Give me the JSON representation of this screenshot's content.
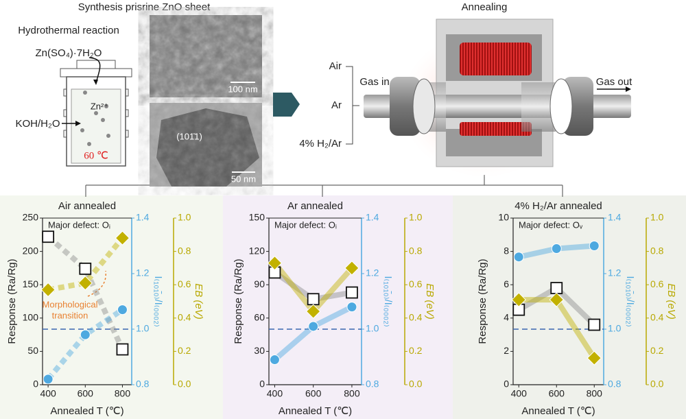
{
  "diagram": {
    "left_title": "Synthesis prisrine ZnO sheet",
    "hydro": "Hydrothermal reaction",
    "reagent": "Zn(SO₄)·7H₂O",
    "ion": "Zn²⁺",
    "solvent": "KOH/H₂O",
    "temp": "60 ℃",
    "sem_scale": "100 nm",
    "tem_plane": "(101̄1)",
    "tem_scale": "50 nm",
    "right_title": "Annealing",
    "gas_air": "Air",
    "gas_ar": "Ar",
    "gas_h2": "4% H₂/Ar",
    "gas_in": "Gas in",
    "gas_out": "Gas out"
  },
  "chart_data": [
    {
      "type": "line",
      "title": "Air annealed",
      "annotation": "Major defect: Oᵢ",
      "annotations": [
        "Morphological",
        "transition"
      ],
      "xlabel": "Annealed T (℃)",
      "ylabel": "Response (Ra/Rg)",
      "y2label": "I₍₁₀₁̄₀₎/I₍₀₀₀₂₎",
      "y3label": "EB (eV)",
      "x": [
        400,
        600,
        800
      ],
      "xlim": [
        370,
        850
      ],
      "xticks": [
        400,
        600,
        800
      ],
      "ylim": [
        0,
        250
      ],
      "yticks": [
        0,
        50,
        100,
        150,
        200,
        250
      ],
      "y2lim": [
        0.8,
        1.4
      ],
      "y2ticks": [
        0.8,
        {
          "value": 1,
          "label": "1.0"
        },
        1.2,
        1.4
      ],
      "y3lim": [
        0,
        1
      ],
      "y3ticks": [
        {
          "value": 0,
          "label": "0.0"
        },
        0.2,
        0.4,
        0.6,
        0.8,
        {
          "value": 1,
          "label": "1.0"
        }
      ],
      "reference_line": {
        "axis": "y2",
        "value": 1,
        "color": "#3a66b0"
      },
      "series": [
        {
          "axis": "y",
          "color": "#8c8c8c",
          "marker": "square",
          "linestyle": "dashed",
          "values": [
            222,
            174,
            53
          ]
        },
        {
          "axis": "y2",
          "color": "#4ea9e0",
          "marker": "circle",
          "linestyle": "dashed",
          "values": [
            0.82,
            0.98,
            1.07
          ]
        },
        {
          "axis": "y3",
          "color": "#c2b100",
          "marker": "diamond",
          "linestyle": "dashed",
          "values": [
            0.57,
            0.61,
            0.88
          ]
        }
      ]
    },
    {
      "type": "line",
      "title": "Ar annealed",
      "annotation": "Major defect: Oᵢ",
      "xlabel": "Annealed T (℃)",
      "ylabel": "Response (Ra/Rg)",
      "y2label": "I₍₁₀₁̄₀₎/I₍₀₀₀₂₎",
      "y3label": "EB (eV)",
      "x": [
        400,
        600,
        800
      ],
      "xlim": [
        370,
        850
      ],
      "xticks": [
        400,
        600,
        800
      ],
      "ylim": [
        0,
        150
      ],
      "yticks": [
        0,
        30,
        60,
        90,
        120,
        150
      ],
      "y2lim": [
        0.8,
        1.4
      ],
      "y2ticks": [
        0.8,
        {
          "value": 1,
          "label": "1.0"
        },
        1.2,
        1.4
      ],
      "y3lim": [
        0,
        1
      ],
      "y3ticks": [
        {
          "value": 0,
          "label": "0.0"
        },
        0.2,
        0.4,
        0.6,
        0.8,
        {
          "value": 1,
          "label": "1.0"
        }
      ],
      "reference_line": {
        "axis": "y2",
        "value": 1,
        "color": "#3a66b0"
      },
      "series": [
        {
          "axis": "y",
          "color": "#8c8c8c",
          "marker": "square",
          "linestyle": "solid",
          "values": [
            101,
            77,
            83
          ]
        },
        {
          "axis": "y2",
          "color": "#4ea9e0",
          "marker": "circle",
          "linestyle": "solid",
          "values": [
            0.89,
            1.01,
            1.08
          ]
        },
        {
          "axis": "y3",
          "color": "#c2b100",
          "marker": "diamond",
          "linestyle": "solid",
          "values": [
            0.73,
            0.44,
            0.7
          ]
        }
      ]
    },
    {
      "type": "line",
      "title": "4% H₂/Ar annealed",
      "annotation": "Major defect: Oᵥ",
      "xlabel": "Annealed T (℃)",
      "ylabel": "Response (Ra/Rg)",
      "y2label": "I₍₁₀₁̄₀₎/I₍₀₀₀₂₎",
      "y3label": "EB (eV)",
      "x": [
        400,
        600,
        800
      ],
      "xlim": [
        370,
        850
      ],
      "xticks": [
        400,
        600,
        800
      ],
      "ylim": [
        0,
        10
      ],
      "yticks": [
        0,
        2,
        4,
        6,
        8,
        10
      ],
      "y2lim": [
        0.8,
        1.4
      ],
      "y2ticks": [
        0.8,
        {
          "value": 1,
          "label": "1.0"
        },
        1.2,
        1.4
      ],
      "y3lim": [
        0,
        1
      ],
      "y3ticks": [
        {
          "value": 0,
          "label": "0.0"
        },
        0.2,
        0.4,
        0.6,
        0.8,
        {
          "value": 1,
          "label": "1.0"
        }
      ],
      "reference_line": {
        "axis": "y2",
        "value": 1,
        "color": "#3a66b0"
      },
      "series": [
        {
          "axis": "y",
          "color": "#8c8c8c",
          "marker": "square",
          "linestyle": "solid",
          "values": [
            4.5,
            5.8,
            3.6
          ]
        },
        {
          "axis": "y2",
          "color": "#4ea9e0",
          "marker": "circle",
          "linestyle": "solid",
          "values": [
            1.26,
            1.29,
            1.3
          ]
        },
        {
          "axis": "y3",
          "color": "#c2b100",
          "marker": "diamond",
          "linestyle": "solid",
          "values": [
            0.51,
            0.51,
            0.16
          ]
        }
      ]
    }
  ]
}
